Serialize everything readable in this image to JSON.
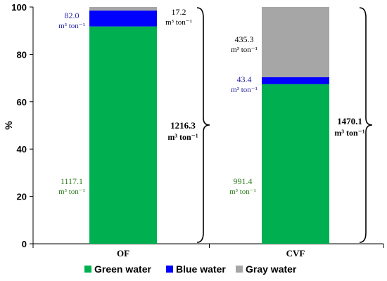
{
  "chart_data": {
    "type": "bar",
    "stacked": true,
    "categories": [
      "OF",
      "CVF"
    ],
    "series": [
      {
        "name": "Green water",
        "values": [
          91.8,
          67.4
        ],
        "color": "#00b050"
      },
      {
        "name": "Blue water",
        "values": [
          6.7,
          3.0
        ],
        "color": "#0000ff"
      },
      {
        "name": "Gray water",
        "values": [
          1.5,
          29.6
        ],
        "color": "#a6a6a6"
      }
    ],
    "ylabel": "%",
    "ylim": [
      0,
      100
    ],
    "yticks": [
      "0",
      "20",
      "40",
      "60",
      "80",
      "100"
    ],
    "grid": false,
    "legend_position": "bottom",
    "annotations": {
      "OF": {
        "green": {
          "value": "1117.1",
          "unit": "m³ ton⁻¹"
        },
        "blue": {
          "value": "82.0",
          "unit": "m³ ton⁻¹"
        },
        "gray": {
          "value": "17.2",
          "unit": "m³ ton⁻¹"
        },
        "total": {
          "value": "1216.3",
          "unit": "m³ ton⁻¹"
        }
      },
      "CVF": {
        "green": {
          "value": "991.4",
          "unit": "m³ ton⁻¹"
        },
        "blue": {
          "value": "43.4",
          "unit": "m³ ton⁻¹"
        },
        "gray": {
          "value": "435.3",
          "unit": "m³ ton⁻¹"
        },
        "total": {
          "value": "1470.1",
          "unit": "m³ ton⁻¹"
        }
      }
    }
  }
}
